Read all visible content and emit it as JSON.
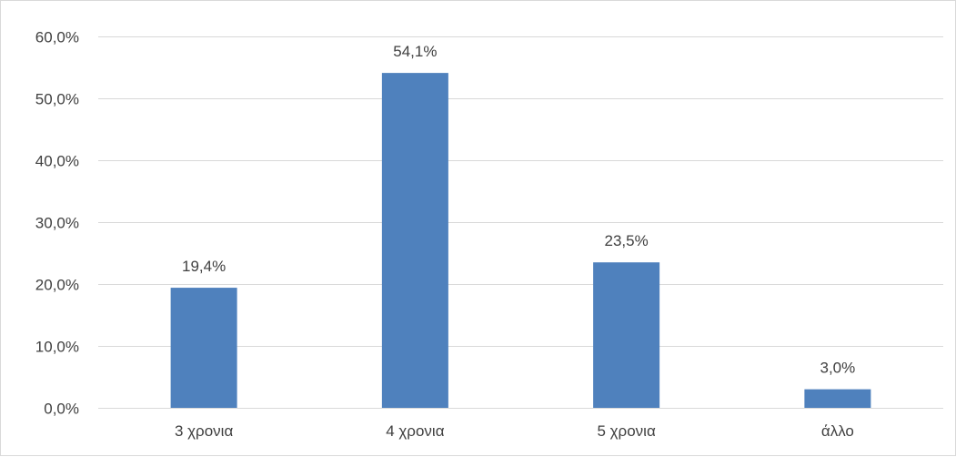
{
  "chart_data": {
    "type": "bar",
    "categories": [
      "3 χρονια",
      "4 χρονια",
      "5 χρονια",
      "άλλο"
    ],
    "values": [
      19.4,
      54.1,
      23.5,
      3.0
    ],
    "data_labels": [
      "19,4%",
      "54,1%",
      "23,5%",
      "3,0%"
    ],
    "y_ticks": [
      0,
      10,
      20,
      30,
      40,
      50,
      60
    ],
    "y_tick_labels": [
      "0,0%",
      "10,0%",
      "20,0%",
      "30,0%",
      "40,0%",
      "50,0%",
      "60,0%"
    ],
    "ylim": [
      0,
      60
    ],
    "grid": true,
    "legend": "none",
    "title": "",
    "xlabel": "",
    "ylabel": "",
    "colors": {
      "bar": "#4f81bd",
      "gridline": "#d9d9d9",
      "text": "#404040"
    }
  }
}
